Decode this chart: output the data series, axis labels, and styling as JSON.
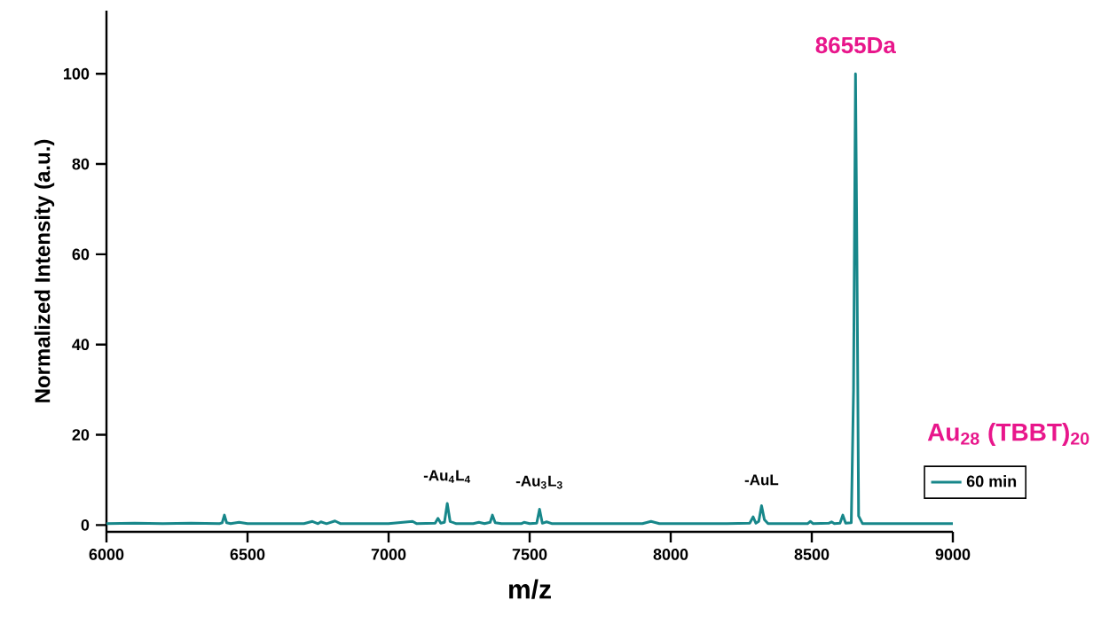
{
  "chart_data": {
    "type": "line",
    "xlabel": "m/z",
    "ylabel": "Normalized Intensity (a.u.)",
    "xlim": [
      6000,
      9000
    ],
    "ylim": [
      -1.5,
      114
    ],
    "xticks": [
      6000,
      6500,
      7000,
      7500,
      8000,
      8500,
      9000
    ],
    "yticks": [
      0,
      20,
      40,
      60,
      80,
      100
    ],
    "legend": "bottom right",
    "series": [
      {
        "name": "60 min",
        "color": "#17878a",
        "x": [
          6000,
          6100,
          6200,
          6300,
          6400,
          6410,
          6418,
          6426,
          6440,
          6470,
          6500,
          6600,
          6700,
          6730,
          6750,
          6760,
          6780,
          6810,
          6830,
          6900,
          7000,
          7085,
          7100,
          7165,
          7175,
          7185,
          7198,
          7208,
          7218,
          7240,
          7300,
          7320,
          7340,
          7360,
          7368,
          7378,
          7400,
          7470,
          7480,
          7500,
          7525,
          7535,
          7545,
          7560,
          7580,
          7700,
          7800,
          7900,
          7930,
          7960,
          8100,
          8200,
          8280,
          8292,
          8302,
          8312,
          8322,
          8332,
          8345,
          8400,
          8485,
          8495,
          8505,
          8560,
          8570,
          8580,
          8600,
          8610,
          8620,
          8640,
          8648,
          8655,
          8660,
          8666,
          8680,
          8800,
          8900,
          9000
        ],
        "values": [
          0.3,
          0.4,
          0.3,
          0.4,
          0.3,
          0.5,
          2.2,
          0.5,
          0.3,
          0.6,
          0.3,
          0.3,
          0.3,
          0.8,
          0.3,
          0.7,
          0.3,
          0.9,
          0.3,
          0.3,
          0.3,
          0.8,
          0.3,
          0.4,
          1.5,
          0.4,
          0.6,
          4.8,
          0.8,
          0.3,
          0.3,
          0.6,
          0.3,
          0.6,
          2.2,
          0.5,
          0.3,
          0.3,
          0.6,
          0.3,
          0.4,
          3.5,
          0.4,
          0.7,
          0.3,
          0.3,
          0.3,
          0.3,
          0.8,
          0.3,
          0.3,
          0.3,
          0.4,
          1.8,
          0.4,
          0.8,
          4.3,
          1.2,
          0.3,
          0.3,
          0.3,
          0.8,
          0.3,
          0.4,
          0.7,
          0.3,
          0.4,
          2.2,
          0.4,
          0.5,
          30,
          100,
          60,
          2,
          0.3,
          0.3,
          0.3,
          0.3
        ]
      }
    ],
    "annotations": [
      {
        "text": "8655Da",
        "x": 8655,
        "y": 100
      },
      "Au$_{28}$ (TBBT)$_{20}$",
      {
        "text": "-Au$_{4}$L$_{4}$",
        "x": 7208,
        "y": 4.8
      },
      {
        "text": "-Au$_{3}$L$_{3}$",
        "x": 7535,
        "y": 3.5
      },
      {
        "text": "-AuL",
        "x": 8322,
        "y": 4.3
      }
    ]
  }
}
